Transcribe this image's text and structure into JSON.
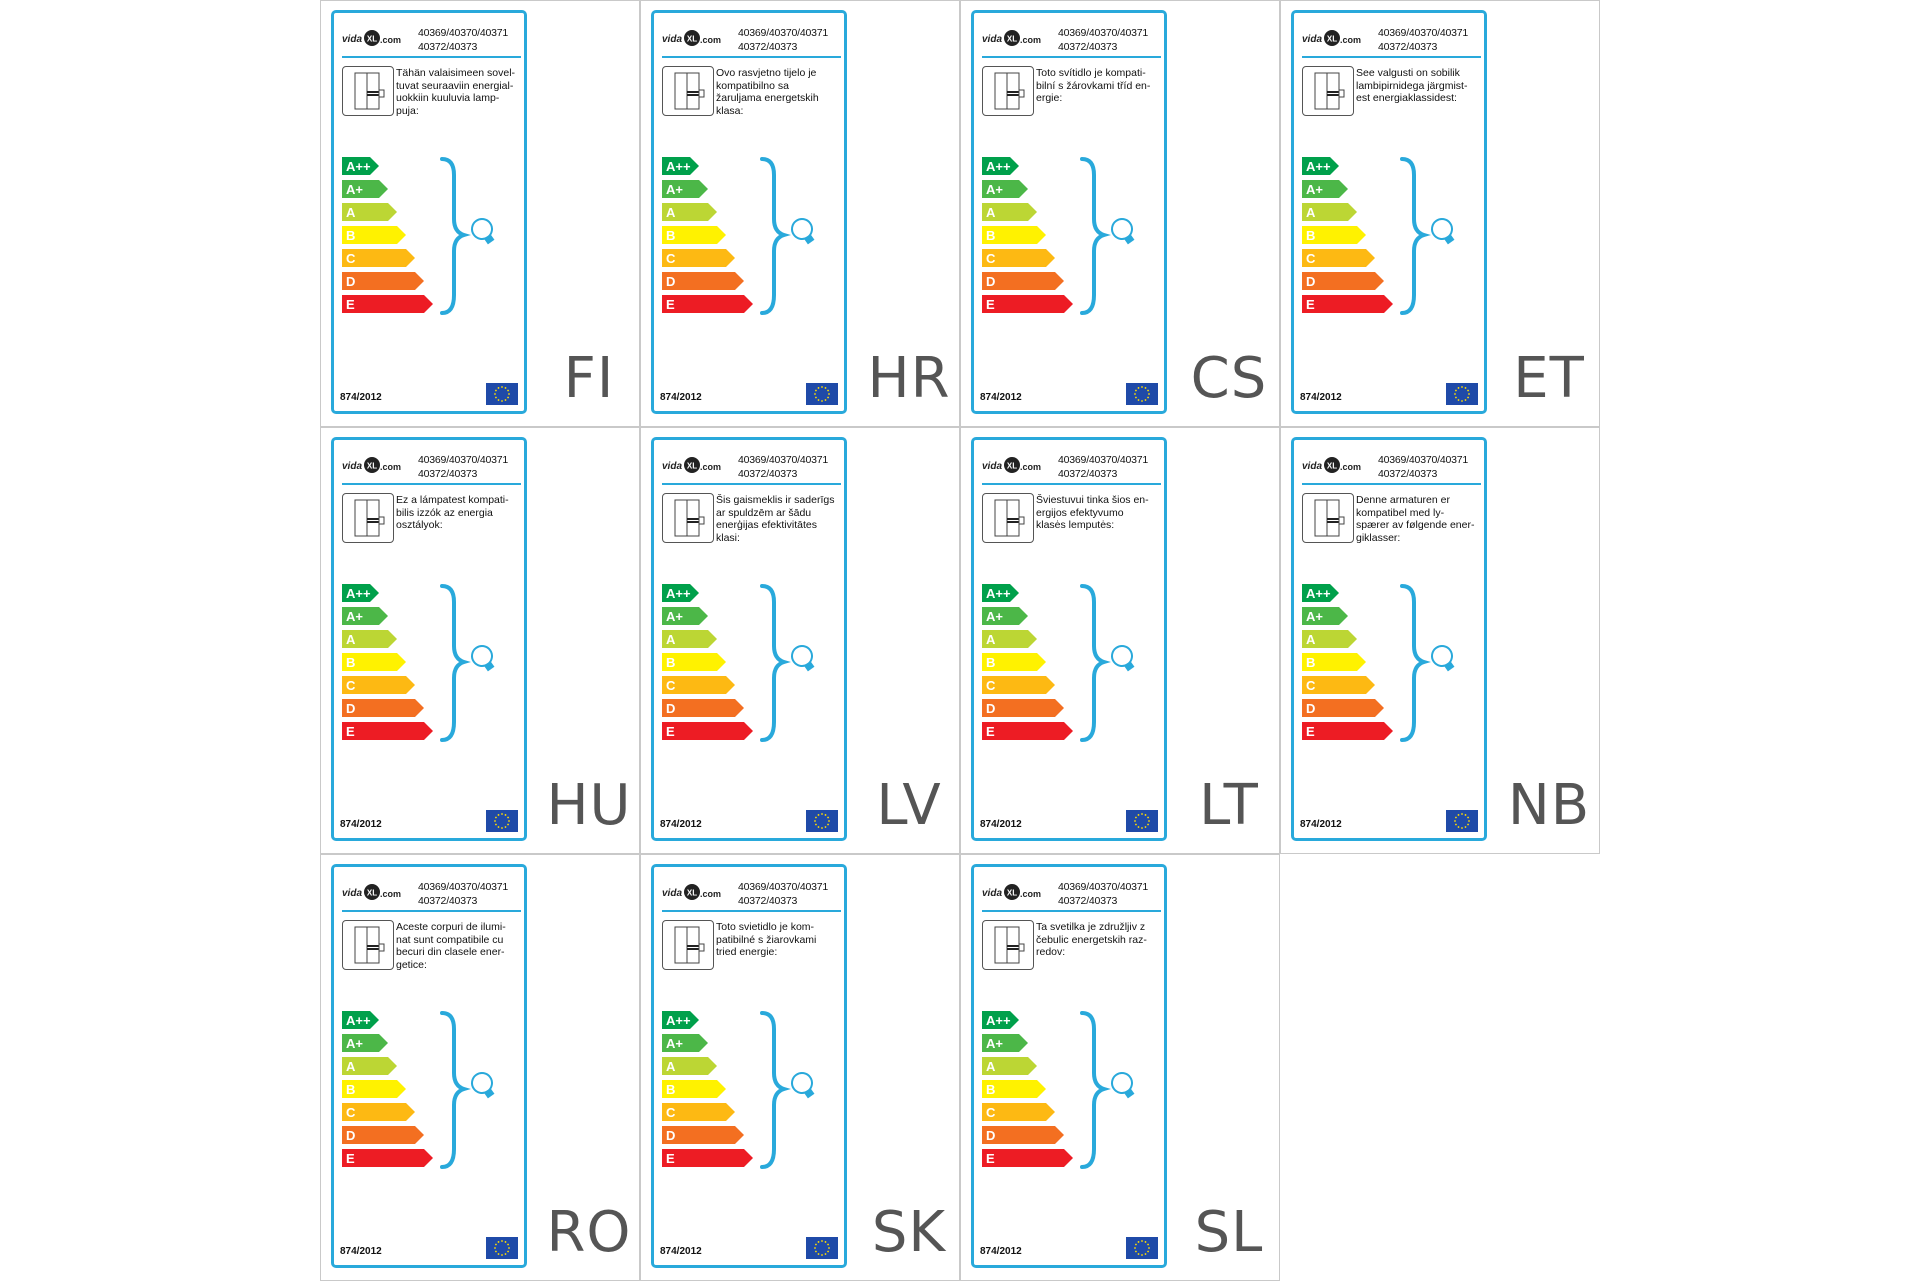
{
  "brand": {
    "logo_text_left": "vida",
    "logo_text_mid": "XL",
    "logo_text_right": ".com"
  },
  "codes": {
    "line1": "40369/40370/40371",
    "line2": "40372/40373"
  },
  "regulation": "874/2012",
  "classes": [
    "A++",
    "A+",
    "A",
    "B",
    "C",
    "D",
    "E"
  ],
  "class_colors": [
    "#00a04b",
    "#4cb748",
    "#bcd634",
    "#fff200",
    "#fdb913",
    "#f36f21",
    "#ed1c24"
  ],
  "accent_color": "#29a9db",
  "icons": {
    "lamp_fixture": "lamp-fixture-icon",
    "bulb": "bulb-icon",
    "brace": "brace-icon",
    "eu_flag": "eu-flag-icon"
  },
  "labels": [
    {
      "lang": "FI",
      "text": [
        "Tähän valaisimeen sovel-",
        "tuvat seuraaviin energial-",
        "uokkiin kuuluvia lamp-",
        "puja:"
      ]
    },
    {
      "lang": "HR",
      "text": [
        "Ovo rasvjetno tijelo je",
        "kompatibilno sa",
        "žaruljama energetskih",
        "klasa:"
      ]
    },
    {
      "lang": "CS",
      "text": [
        "Toto svítidlo je kompati-",
        "bilní s žárovkami tříd en-",
        "ergie:"
      ]
    },
    {
      "lang": "ET",
      "text": [
        "See valgusti on sobilik",
        "lambipirnidega järgmist-",
        "est energiaklassidest:"
      ]
    },
    {
      "lang": "HU",
      "text": [
        "Ez a lámpatest kompati-",
        "bilis izzók az energia",
        "osztályok:"
      ]
    },
    {
      "lang": "LV",
      "text": [
        "Šis gaismeklis ir saderīgs",
        "ar spuldzēm ar šādu",
        "enerģijas efektivitātes",
        "klasi:"
      ]
    },
    {
      "lang": "LT",
      "text": [
        "Šviestuvui tinka šios en-",
        "ergijos efektyvumo",
        "klasės lemputės:"
      ]
    },
    {
      "lang": "NB",
      "text": [
        "Denne armaturen er",
        "kompatibel med ly-",
        "spærer av følgende ener-",
        "giklasser:"
      ]
    },
    {
      "lang": "RO",
      "text": [
        "Aceste corpuri de ilumi-",
        "nat sunt compatibile cu",
        "becuri din clasele ener-",
        "getice:"
      ]
    },
    {
      "lang": "SK",
      "text": [
        "Toto svietidlo je kom-",
        "patibilné s žiarovkami",
        "tried energie:"
      ]
    },
    {
      "lang": "SL",
      "text": [
        "Ta svetilka je združljiv z",
        "čebulic energetskih raz-",
        "redov:"
      ]
    }
  ]
}
